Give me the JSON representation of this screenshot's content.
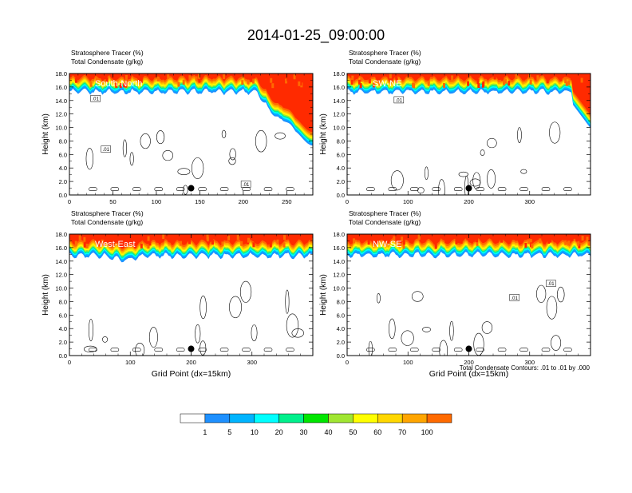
{
  "title": "2014-01-25_09:00:00",
  "footnote": "Total Condensate Contours: .01 to .01 by .000",
  "colors": {
    "levels": [
      "#ffffff",
      "#1e90ff",
      "#00b4ff",
      "#00ffff",
      "#00f08c",
      "#00e600",
      "#a0e632",
      "#ffff00",
      "#ffd700",
      "#ffa500",
      "#ff6a00",
      "#ff2a00"
    ],
    "contour": "#000000",
    "marker": "#000000"
  },
  "colorbar": {
    "labels": [
      "1",
      "5",
      "10",
      "20",
      "30",
      "40",
      "50",
      "60",
      "70",
      "100"
    ]
  },
  "chart_data": [
    {
      "type": "heatmap",
      "name": "South-North",
      "label1": "Stratosphere Tracer   (%)",
      "label2": "Total Condensate   (g/kg)",
      "ylabel": "Height (km)",
      "xlabel": "",
      "xlim": [
        0,
        280
      ],
      "ylim": [
        0,
        18
      ],
      "xticks": [
        0,
        50,
        100,
        150,
        200,
        250
      ],
      "yticks": [
        0.0,
        2.0,
        4.0,
        6.0,
        8.0,
        10.0,
        12.0,
        14.0,
        16.0,
        18.0
      ],
      "tracer_base_km": 15.3,
      "marker": {
        "x": 140,
        "y": 1.0
      },
      "contour_labels": [
        {
          "text": ".01",
          "x": 30,
          "y": 14.3
        },
        {
          "text": ".01",
          "x": 42,
          "y": 6.8
        },
        {
          "text": ".01",
          "x": 203,
          "y": 1.6
        }
      ]
    },
    {
      "type": "heatmap",
      "name": "SW-NE",
      "label1": "Stratosphere Tracer   (%)",
      "label2": "Total Condensate   (g/kg)",
      "ylabel": "Height (km)",
      "xlabel": "",
      "xlim": [
        0,
        400
      ],
      "ylim": [
        0,
        18
      ],
      "xticks": [
        0,
        100,
        200,
        300
      ],
      "yticks": [
        0.0,
        2.0,
        4.0,
        6.0,
        8.0,
        10.0,
        12.0,
        14.0,
        16.0,
        18.0
      ],
      "tracer_base_km": 15.3,
      "marker": {
        "x": 200,
        "y": 1.0
      },
      "contour_labels": [
        {
          "text": ".01",
          "x": 85,
          "y": 14.1
        }
      ]
    },
    {
      "type": "heatmap",
      "name": "West-East",
      "label1": "Stratosphere Tracer   (%)",
      "label2": "Total Condensate   (g/kg)",
      "ylabel": "Height (km)",
      "xlabel": "Grid Point (dx=15km)",
      "xlim": [
        0,
        400
      ],
      "ylim": [
        0,
        18
      ],
      "xticks": [
        0,
        100,
        200,
        300
      ],
      "yticks": [
        0.0,
        2.0,
        4.0,
        6.0,
        8.0,
        10.0,
        12.0,
        14.0,
        16.0,
        18.0
      ],
      "tracer_base_km": 14.8,
      "marker": {
        "x": 200,
        "y": 1.0
      },
      "contour_labels": []
    },
    {
      "type": "heatmap",
      "name": "NW-SE",
      "label1": "Stratosphere Tracer   (%)",
      "label2": "Total Condensate   (g/kg)",
      "ylabel": "Height (km)",
      "xlabel": "Grid Point (dx=15km)",
      "xlim": [
        0,
        400
      ],
      "ylim": [
        0,
        18
      ],
      "xticks": [
        0,
        100,
        200,
        300
      ],
      "yticks": [
        0.0,
        2.0,
        4.0,
        6.0,
        8.0,
        10.0,
        12.0,
        14.0,
        16.0,
        18.0
      ],
      "tracer_base_km": 14.9,
      "marker": {
        "x": 200,
        "y": 1.0
      },
      "contour_labels": [
        {
          "text": ".01",
          "x": 275,
          "y": 8.6
        },
        {
          "text": ".01",
          "x": 335,
          "y": 10.7
        }
      ]
    }
  ]
}
